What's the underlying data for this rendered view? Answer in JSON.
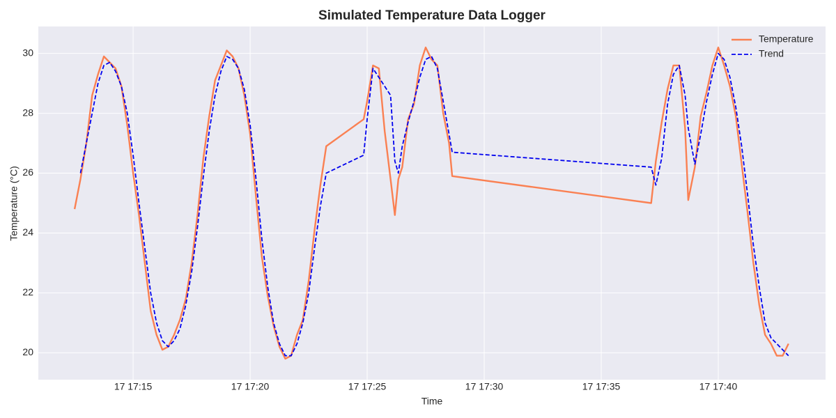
{
  "chart_data": {
    "type": "line",
    "title": "Simulated Temperature Data Logger",
    "xlabel": "Time",
    "ylabel": "Temperature (°C)",
    "x": [
      "17 17:12:30",
      "17 17:12:45",
      "17 17:13:00",
      "17 17:13:15",
      "17 17:13:30",
      "17 17:13:45",
      "17 17:14:00",
      "17 17:14:15",
      "17 17:14:30",
      "17 17:14:45",
      "17 17:15:00",
      "17 17:15:15",
      "17 17:15:30",
      "17 17:15:45",
      "17 17:16:00",
      "17 17:16:15",
      "17 17:16:30",
      "17 17:16:45",
      "17 17:17:00",
      "17 17:17:15",
      "17 17:17:30",
      "17 17:17:45",
      "17 17:18:00",
      "17 17:18:15",
      "17 17:18:30",
      "17 17:18:45",
      "17 17:19:00",
      "17 17:19:15",
      "17 17:19:30",
      "17 17:19:45",
      "17 17:20:00",
      "17 17:20:15",
      "17 17:20:30",
      "17 17:20:45",
      "17 17:21:00",
      "17 17:21:15",
      "17 17:21:30",
      "17 17:21:45",
      "17 17:22:00",
      "17 17:22:15",
      "17 17:22:30",
      "17 17:22:45",
      "17 17:23:00",
      "17 17:23:15",
      "17 17:24:51",
      "17 17:25:00",
      "17 17:25:15",
      "17 17:25:30",
      "17 17:25:45",
      "17 17:26:00",
      "17 17:26:11",
      "17 17:26:20",
      "17 17:26:30",
      "17 17:26:45",
      "17 17:27:00",
      "17 17:27:15",
      "17 17:27:30",
      "17 17:27:45",
      "17 17:28:00",
      "17 17:28:15",
      "17 17:28:30",
      "17 17:28:38",
      "17 17:37:08",
      "17 17:37:20",
      "17 17:37:35",
      "17 17:37:50",
      "17 17:38:05",
      "17 17:38:20",
      "17 17:38:35",
      "17 17:38:43",
      "17 17:39:00",
      "17 17:39:15",
      "17 17:39:30",
      "17 17:39:45",
      "17 17:40:00",
      "17 17:40:15",
      "17 17:40:30",
      "17 17:40:45",
      "17 17:41:00",
      "17 17:41:15",
      "17 17:41:30",
      "17 17:41:45",
      "17 17:42:00",
      "17 17:42:15",
      "17 17:42:30",
      "17 17:42:45",
      "17 17:43:00"
    ],
    "series": [
      {
        "name": "Temperature",
        "color": "#fa8052",
        "dash": "solid",
        "values": [
          24.8,
          25.8,
          27.0,
          28.6,
          29.3,
          29.9,
          29.7,
          29.5,
          28.9,
          27.6,
          26.0,
          24.6,
          23.0,
          21.4,
          20.6,
          20.1,
          20.2,
          20.6,
          21.1,
          21.8,
          23.0,
          24.6,
          26.5,
          27.9,
          29.1,
          29.6,
          30.1,
          29.9,
          29.5,
          28.6,
          27.3,
          25.2,
          23.2,
          21.9,
          20.9,
          20.2,
          19.8,
          19.9,
          20.6,
          21.1,
          22.4,
          24.1,
          25.6,
          26.9,
          27.8,
          28.4,
          29.6,
          29.5,
          27.4,
          25.8,
          24.6,
          25.8,
          26.2,
          27.8,
          28.3,
          29.6,
          30.2,
          29.8,
          29.6,
          28.0,
          27.0,
          25.9,
          25.0,
          26.4,
          27.7,
          28.8,
          29.6,
          29.6,
          27.5,
          25.1,
          26.2,
          27.9,
          28.7,
          29.6,
          30.2,
          29.6,
          28.9,
          27.9,
          26.3,
          24.7,
          23.0,
          21.6,
          20.6,
          20.3,
          19.9,
          19.9,
          20.3
        ]
      },
      {
        "name": "Trend",
        "color": "#0000ee",
        "dash": "dashed",
        "values": [
          null,
          26.0,
          27.0,
          28.0,
          29.0,
          29.6,
          29.7,
          29.4,
          28.9,
          28.0,
          26.6,
          25.0,
          23.5,
          22.0,
          21.0,
          20.4,
          20.2,
          20.4,
          20.8,
          21.6,
          22.7,
          24.2,
          25.9,
          27.4,
          28.6,
          29.4,
          29.9,
          29.8,
          29.5,
          28.8,
          27.6,
          25.8,
          23.8,
          22.2,
          21.0,
          20.3,
          19.9,
          19.9,
          20.3,
          21.0,
          22.0,
          23.5,
          24.9,
          26.0,
          26.6,
          27.8,
          29.5,
          29.2,
          28.9,
          28.6,
          26.4,
          26.0,
          26.9,
          27.7,
          28.4,
          29.2,
          29.8,
          29.9,
          29.5,
          28.4,
          27.3,
          26.7,
          26.2,
          25.6,
          26.5,
          28.3,
          29.3,
          29.6,
          28.6,
          27.5,
          26.3,
          27.3,
          28.4,
          29.3,
          30.0,
          29.8,
          29.2,
          28.2,
          26.9,
          25.3,
          23.6,
          22.2,
          21.0,
          20.5,
          20.3,
          20.1,
          19.9
        ]
      }
    ],
    "xlim": [
      "17 17:10:57",
      "17 17:44:35"
    ],
    "xticks": [
      "17 17:15",
      "17 17:20",
      "17 17:25",
      "17 17:30",
      "17 17:35",
      "17 17:40"
    ],
    "ylim": [
      19.1,
      30.9
    ],
    "yticks": [
      20,
      22,
      24,
      26,
      28,
      30
    ],
    "grid": true,
    "legend": "upper right"
  }
}
